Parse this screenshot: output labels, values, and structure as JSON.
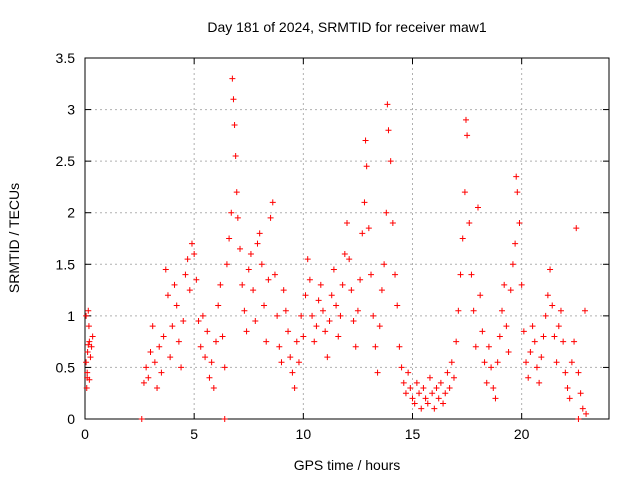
{
  "chart_data": {
    "type": "scatter",
    "title": "Day 181 of 2024, SRMTID for receiver maw1",
    "xlabel": "GPS time / hours",
    "ylabel": "SRMTID / TECUs",
    "xlim": [
      0,
      24
    ],
    "ylim": [
      0,
      3.5
    ],
    "x_ticks": [
      0,
      5,
      10,
      15,
      20
    ],
    "y_ticks": [
      0,
      0.5,
      1,
      1.5,
      2,
      2.5,
      3,
      3.5
    ],
    "x_tick_labels": [
      "0",
      "5",
      "10",
      "15",
      "20"
    ],
    "y_tick_labels": [
      "0",
      "0.5",
      "1",
      "1.5",
      "2",
      "2.5",
      "3",
      "3.5"
    ],
    "grid": true,
    "marker": "+",
    "color": "#ff0000",
    "series": [
      {
        "name": "maw1",
        "points": [
          [
            0.05,
            0.55
          ],
          [
            0.08,
            0.3
          ],
          [
            0.1,
            0.4
          ],
          [
            0.12,
            0.65
          ],
          [
            0.15,
            1.05
          ],
          [
            0.18,
            0.9
          ],
          [
            0.2,
            0.75
          ],
          [
            0.25,
            0.6
          ],
          [
            0.3,
            0.7
          ],
          [
            0.35,
            0.8
          ],
          [
            0.1,
            0.45
          ],
          [
            0.2,
            0.38
          ],
          [
            0.05,
            1.0
          ],
          [
            0.15,
            0.72
          ],
          [
            2.6,
            0.0
          ],
          [
            6.4,
            0.0
          ],
          [
            22.6,
            0.0
          ],
          [
            2.7,
            0.35
          ],
          [
            2.8,
            0.5
          ],
          [
            2.9,
            0.4
          ],
          [
            3.0,
            0.65
          ],
          [
            3.1,
            0.9
          ],
          [
            3.2,
            0.55
          ],
          [
            3.3,
            0.3
          ],
          [
            3.4,
            0.7
          ],
          [
            3.5,
            0.45
          ],
          [
            3.6,
            0.8
          ],
          [
            3.7,
            1.45
          ],
          [
            3.8,
            1.2
          ],
          [
            3.9,
            0.6
          ],
          [
            4.0,
            0.9
          ],
          [
            4.1,
            1.3
          ],
          [
            4.2,
            1.1
          ],
          [
            4.3,
            0.75
          ],
          [
            4.4,
            0.5
          ],
          [
            4.5,
            0.95
          ],
          [
            4.6,
            1.4
          ],
          [
            4.7,
            1.55
          ],
          [
            4.8,
            1.25
          ],
          [
            4.9,
            1.7
          ],
          [
            5.0,
            1.6
          ],
          [
            5.1,
            1.35
          ],
          [
            5.2,
            0.95
          ],
          [
            5.3,
            0.7
          ],
          [
            5.4,
            1.0
          ],
          [
            5.5,
            0.6
          ],
          [
            5.6,
            0.85
          ],
          [
            5.7,
            0.4
          ],
          [
            5.8,
            0.55
          ],
          [
            5.9,
            0.3
          ],
          [
            6.0,
            0.75
          ],
          [
            6.1,
            1.1
          ],
          [
            6.2,
            1.3
          ],
          [
            6.3,
            0.8
          ],
          [
            6.4,
            0.5
          ],
          [
            6.5,
            1.5
          ],
          [
            6.6,
            1.75
          ],
          [
            6.7,
            2.0
          ],
          [
            6.75,
            3.3
          ],
          [
            6.8,
            3.1
          ],
          [
            6.85,
            2.85
          ],
          [
            6.9,
            2.55
          ],
          [
            6.95,
            2.2
          ],
          [
            7.0,
            1.95
          ],
          [
            7.1,
            1.65
          ],
          [
            7.2,
            1.3
          ],
          [
            7.3,
            1.05
          ],
          [
            7.4,
            0.85
          ],
          [
            7.5,
            1.45
          ],
          [
            7.6,
            1.6
          ],
          [
            7.7,
            1.25
          ],
          [
            7.8,
            0.95
          ],
          [
            7.9,
            1.7
          ],
          [
            8.0,
            1.8
          ],
          [
            8.1,
            1.5
          ],
          [
            8.2,
            1.1
          ],
          [
            8.3,
            0.75
          ],
          [
            8.4,
            1.35
          ],
          [
            8.5,
            1.95
          ],
          [
            8.6,
            2.1
          ],
          [
            8.7,
            1.4
          ],
          [
            8.8,
            1.0
          ],
          [
            8.9,
            0.7
          ],
          [
            9.0,
            0.55
          ],
          [
            9.1,
            1.25
          ],
          [
            9.2,
            1.05
          ],
          [
            9.3,
            0.85
          ],
          [
            9.4,
            0.6
          ],
          [
            9.5,
            0.45
          ],
          [
            9.6,
            0.3
          ],
          [
            9.7,
            0.75
          ],
          [
            9.8,
            0.55
          ],
          [
            9.9,
            1.0
          ],
          [
            10.0,
            0.8
          ],
          [
            10.1,
            1.2
          ],
          [
            10.2,
            1.55
          ],
          [
            10.3,
            1.35
          ],
          [
            10.4,
            1.0
          ],
          [
            10.5,
            0.75
          ],
          [
            10.6,
            0.9
          ],
          [
            10.7,
            1.15
          ],
          [
            10.8,
            1.3
          ],
          [
            10.9,
            1.05
          ],
          [
            11.0,
            0.85
          ],
          [
            11.1,
            0.6
          ],
          [
            11.2,
            0.95
          ],
          [
            11.3,
            1.2
          ],
          [
            11.4,
            1.45
          ],
          [
            11.5,
            1.1
          ],
          [
            11.6,
            0.8
          ],
          [
            11.7,
            1.0
          ],
          [
            11.8,
            1.3
          ],
          [
            11.9,
            1.6
          ],
          [
            12.0,
            1.9
          ],
          [
            12.1,
            1.55
          ],
          [
            12.2,
            1.25
          ],
          [
            12.3,
            0.95
          ],
          [
            12.4,
            0.7
          ],
          [
            12.5,
            1.05
          ],
          [
            12.6,
            1.35
          ],
          [
            12.7,
            1.8
          ],
          [
            12.8,
            2.1
          ],
          [
            12.85,
            2.7
          ],
          [
            12.9,
            2.45
          ],
          [
            13.0,
            1.85
          ],
          [
            13.1,
            1.4
          ],
          [
            13.2,
            1.0
          ],
          [
            13.3,
            0.7
          ],
          [
            13.4,
            0.45
          ],
          [
            13.5,
            0.9
          ],
          [
            13.6,
            1.25
          ],
          [
            13.7,
            1.5
          ],
          [
            13.8,
            2.0
          ],
          [
            13.85,
            3.05
          ],
          [
            13.9,
            2.8
          ],
          [
            14.0,
            2.5
          ],
          [
            14.1,
            1.9
          ],
          [
            14.2,
            1.4
          ],
          [
            14.3,
            1.1
          ],
          [
            14.4,
            0.7
          ],
          [
            14.5,
            0.5
          ],
          [
            14.6,
            0.35
          ],
          [
            14.7,
            0.25
          ],
          [
            14.8,
            0.45
          ],
          [
            14.9,
            0.3
          ],
          [
            15.0,
            0.2
          ],
          [
            15.1,
            0.15
          ],
          [
            15.2,
            0.35
          ],
          [
            15.3,
            0.25
          ],
          [
            15.4,
            0.1
          ],
          [
            15.5,
            0.3
          ],
          [
            15.6,
            0.2
          ],
          [
            15.7,
            0.15
          ],
          [
            15.8,
            0.4
          ],
          [
            15.9,
            0.25
          ],
          [
            16.0,
            0.1
          ],
          [
            16.1,
            0.3
          ],
          [
            16.2,
            0.2
          ],
          [
            16.3,
            0.35
          ],
          [
            16.4,
            0.15
          ],
          [
            16.5,
            0.25
          ],
          [
            16.6,
            0.45
          ],
          [
            16.7,
            0.3
          ],
          [
            16.8,
            0.55
          ],
          [
            16.9,
            0.4
          ],
          [
            17.0,
            0.75
          ],
          [
            17.1,
            1.05
          ],
          [
            17.2,
            1.4
          ],
          [
            17.3,
            1.75
          ],
          [
            17.4,
            2.2
          ],
          [
            17.45,
            2.9
          ],
          [
            17.5,
            2.75
          ],
          [
            17.6,
            1.9
          ],
          [
            17.7,
            1.4
          ],
          [
            17.8,
            1.05
          ],
          [
            17.9,
            0.7
          ],
          [
            18.0,
            2.05
          ],
          [
            18.1,
            1.2
          ],
          [
            18.2,
            0.85
          ],
          [
            18.3,
            0.55
          ],
          [
            18.4,
            0.35
          ],
          [
            18.5,
            0.7
          ],
          [
            18.6,
            0.5
          ],
          [
            18.7,
            0.3
          ],
          [
            18.8,
            0.2
          ],
          [
            18.9,
            0.55
          ],
          [
            19.0,
            0.8
          ],
          [
            19.1,
            1.05
          ],
          [
            19.2,
            1.3
          ],
          [
            19.3,
            0.9
          ],
          [
            19.4,
            0.65
          ],
          [
            19.5,
            1.25
          ],
          [
            19.6,
            1.5
          ],
          [
            19.7,
            1.7
          ],
          [
            19.75,
            2.35
          ],
          [
            19.8,
            2.2
          ],
          [
            19.9,
            1.9
          ],
          [
            20.0,
            1.3
          ],
          [
            20.1,
            0.85
          ],
          [
            20.2,
            0.55
          ],
          [
            20.3,
            0.4
          ],
          [
            20.4,
            0.65
          ],
          [
            20.5,
            0.9
          ],
          [
            20.6,
            0.75
          ],
          [
            20.7,
            0.5
          ],
          [
            20.8,
            0.35
          ],
          [
            20.9,
            0.6
          ],
          [
            21.0,
            0.8
          ],
          [
            21.1,
            1.0
          ],
          [
            21.2,
            1.2
          ],
          [
            21.3,
            1.45
          ],
          [
            21.4,
            1.1
          ],
          [
            21.5,
            0.8
          ],
          [
            21.6,
            0.55
          ],
          [
            21.7,
            0.9
          ],
          [
            21.8,
            1.05
          ],
          [
            21.9,
            0.75
          ],
          [
            22.0,
            0.45
          ],
          [
            22.1,
            0.3
          ],
          [
            22.2,
            0.2
          ],
          [
            22.3,
            0.55
          ],
          [
            22.4,
            0.75
          ],
          [
            22.5,
            1.85
          ],
          [
            22.6,
            0.45
          ],
          [
            22.7,
            0.25
          ],
          [
            22.8,
            0.1
          ],
          [
            22.9,
            1.05
          ],
          [
            22.95,
            0.05
          ]
        ]
      }
    ]
  }
}
